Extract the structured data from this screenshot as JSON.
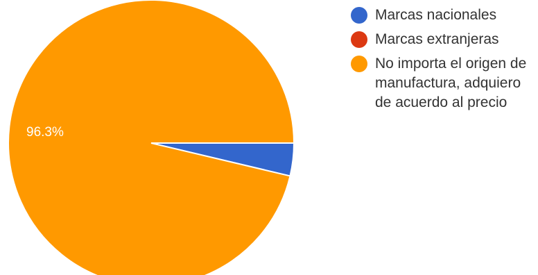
{
  "chart_data": {
    "type": "pie",
    "slices": [
      {
        "label": "Marcas nacionales",
        "value": 3.7,
        "color": "#3366cc"
      },
      {
        "label": "Marcas extranjeras",
        "value": 0,
        "color": "#dc3912"
      },
      {
        "label": "No importa el origen de manufactura, adquiero de acuerdo al precio",
        "value": 96.3,
        "color": "#ff9900"
      }
    ],
    "data_labels": [
      "",
      "",
      "96.3%"
    ],
    "legend_position": "right"
  }
}
